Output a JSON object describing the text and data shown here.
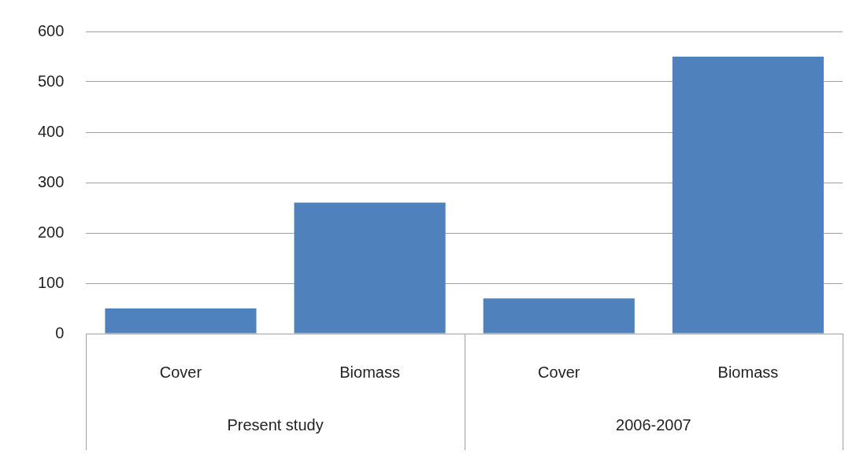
{
  "chart_data": {
    "type": "bar",
    "categories": [
      "Cover",
      "Biomass",
      "Cover",
      "Biomass"
    ],
    "values": [
      50,
      260,
      70,
      550
    ],
    "color": "#4f81bd",
    "ylim": [
      0,
      600
    ],
    "yticks": [
      0,
      100,
      200,
      300,
      400,
      500,
      600
    ],
    "grid": "y",
    "legend": false,
    "annotations": [
      "Present study",
      "2006-2007"
    ]
  }
}
